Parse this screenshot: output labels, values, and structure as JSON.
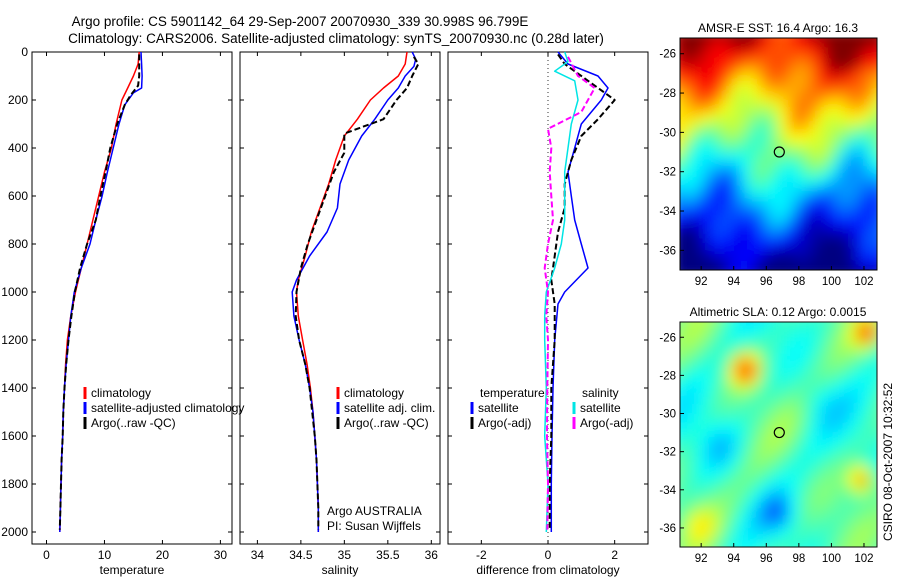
{
  "header": {
    "title_line1": "Argo profile: CS 5901142_64 29-Sep-2007 20070930_339 30.998S 96.799E",
    "title_line2": "Climatology: CARS2006. Satellite-adjusted climatology: synTS_20070930.nc (0.28d later)"
  },
  "side_text": "CSIRO 08-Oct-2007 10:32:52",
  "chart_data": [
    {
      "type": "line",
      "panel": "temperature",
      "xlabel": "temperature",
      "ylabel": "",
      "xlim": [
        -2.5,
        32
      ],
      "ylim": [
        2050,
        0
      ],
      "xticks": [
        0,
        10,
        20,
        30
      ],
      "yticks": [
        0,
        200,
        400,
        600,
        800,
        1000,
        1200,
        1400,
        1600,
        1800,
        2000
      ],
      "legend": {
        "placement": "bottom-right",
        "entries": [
          "climatology",
          "satellite-adjusted climatology",
          "Argo(..raw -QC)"
        ]
      },
      "series": [
        {
          "name": "climatology",
          "color": "#ff0000",
          "dash": "solid",
          "points": [
            [
              16.0,
              0
            ],
            [
              15.8,
              50
            ],
            [
              15.0,
              100
            ],
            [
              14.0,
              150
            ],
            [
              13.0,
              200
            ],
            [
              12.0,
              300
            ],
            [
              11.2,
              400
            ],
            [
              10.0,
              500
            ],
            [
              9.0,
              600
            ],
            [
              8.0,
              700
            ],
            [
              7.0,
              800
            ],
            [
              6.0,
              900
            ],
            [
              5.0,
              1000
            ],
            [
              4.2,
              1100
            ],
            [
              3.6,
              1200
            ],
            [
              3.3,
              1300
            ],
            [
              3.1,
              1400
            ],
            [
              2.9,
              1500
            ],
            [
              2.8,
              1600
            ],
            [
              2.6,
              1700
            ],
            [
              2.5,
              1800
            ],
            [
              2.4,
              1900
            ],
            [
              2.3,
              2000
            ]
          ]
        },
        {
          "name": "satellite-adjusted climatology",
          "color": "#0000ff",
          "dash": "solid",
          "points": [
            [
              16.3,
              0
            ],
            [
              16.4,
              50
            ],
            [
              16.5,
              100
            ],
            [
              16.4,
              150
            ],
            [
              15.0,
              170
            ],
            [
              13.5,
              220
            ],
            [
              12.5,
              300
            ],
            [
              11.5,
              400
            ],
            [
              10.5,
              500
            ],
            [
              9.6,
              600
            ],
            [
              8.5,
              700
            ],
            [
              7.5,
              800
            ],
            [
              6.0,
              900
            ],
            [
              4.8,
              1000
            ],
            [
              4.2,
              1100
            ],
            [
              3.8,
              1200
            ],
            [
              3.4,
              1300
            ],
            [
              3.1,
              1400
            ],
            [
              2.9,
              1500
            ],
            [
              2.8,
              1600
            ],
            [
              2.6,
              1700
            ],
            [
              2.5,
              1800
            ],
            [
              2.4,
              1900
            ],
            [
              2.3,
              2000
            ]
          ]
        },
        {
          "name": "Argo(..raw -QC)",
          "color": "#000000",
          "dash": "dashed",
          "points": [
            [
              16.0,
              10
            ],
            [
              16.0,
              50
            ],
            [
              16.0,
              100
            ],
            [
              15.8,
              140
            ],
            [
              14.5,
              180
            ],
            [
              13.5,
              220
            ],
            [
              12.2,
              300
            ],
            [
              11.0,
              400
            ],
            [
              10.2,
              500
            ],
            [
              9.3,
              600
            ],
            [
              8.5,
              700
            ],
            [
              7.0,
              800
            ],
            [
              5.8,
              900
            ],
            [
              4.9,
              1000
            ],
            [
              4.3,
              1100
            ],
            [
              3.8,
              1200
            ],
            [
              3.4,
              1300
            ],
            [
              3.1,
              1400
            ],
            [
              2.9,
              1500
            ],
            [
              2.8,
              1600
            ],
            [
              2.6,
              1700
            ],
            [
              2.5,
              1800
            ],
            [
              2.4,
              1900
            ],
            [
              2.3,
              1990
            ]
          ]
        }
      ]
    },
    {
      "type": "line",
      "panel": "salinity",
      "xlabel": "salinity",
      "ylabel": "",
      "xlim": [
        33.8,
        36.1
      ],
      "ylim": [
        2050,
        0
      ],
      "xticks": [
        34,
        34.5,
        35,
        35.5,
        36
      ],
      "yticks": [
        0,
        200,
        400,
        600,
        800,
        1000,
        1200,
        1400,
        1600,
        1800,
        2000
      ],
      "legend": {
        "placement": "bottom-right",
        "entries": [
          "climatology",
          "satellite adj. clim.",
          "Argo(..raw -QC)"
        ]
      },
      "annotations": [
        "Argo AUSTRALIA",
        "PI: Susan Wijffels"
      ],
      "series": [
        {
          "name": "climatology",
          "color": "#ff0000",
          "dash": "solid",
          "points": [
            [
              35.72,
              0
            ],
            [
              35.7,
              50
            ],
            [
              35.62,
              100
            ],
            [
              35.45,
              150
            ],
            [
              35.3,
              200
            ],
            [
              35.15,
              280
            ],
            [
              35.0,
              350
            ],
            [
              34.9,
              450
            ],
            [
              34.82,
              550
            ],
            [
              34.72,
              650
            ],
            [
              34.62,
              750
            ],
            [
              34.55,
              850
            ],
            [
              34.47,
              950
            ],
            [
              34.45,
              1000
            ],
            [
              34.47,
              1100
            ],
            [
              34.52,
              1200
            ],
            [
              34.57,
              1300
            ],
            [
              34.61,
              1400
            ],
            [
              34.64,
              1500
            ],
            [
              34.66,
              1600
            ],
            [
              34.68,
              1700
            ],
            [
              34.69,
              1800
            ],
            [
              34.7,
              1900
            ],
            [
              34.7,
              2000
            ]
          ]
        },
        {
          "name": "satellite adj. clim.",
          "color": "#0000ff",
          "dash": "solid",
          "points": [
            [
              35.78,
              0
            ],
            [
              35.82,
              30
            ],
            [
              35.8,
              60
            ],
            [
              35.7,
              100
            ],
            [
              35.62,
              150
            ],
            [
              35.5,
              200
            ],
            [
              35.35,
              280
            ],
            [
              35.2,
              350
            ],
            [
              35.05,
              450
            ],
            [
              34.95,
              550
            ],
            [
              34.92,
              650
            ],
            [
              34.8,
              750
            ],
            [
              34.6,
              850
            ],
            [
              34.45,
              950
            ],
            [
              34.4,
              1000
            ],
            [
              34.42,
              1100
            ],
            [
              34.48,
              1200
            ],
            [
              34.55,
              1300
            ],
            [
              34.6,
              1400
            ],
            [
              34.64,
              1500
            ],
            [
              34.66,
              1600
            ],
            [
              34.68,
              1700
            ],
            [
              34.69,
              1800
            ],
            [
              34.7,
              1900
            ],
            [
              34.7,
              2000
            ]
          ]
        },
        {
          "name": "Argo(..raw -QC)",
          "color": "#000000",
          "dash": "dashed",
          "points": [
            [
              35.8,
              20
            ],
            [
              35.85,
              50
            ],
            [
              35.78,
              100
            ],
            [
              35.72,
              150
            ],
            [
              35.6,
              200
            ],
            [
              35.45,
              280
            ],
            [
              35.0,
              340
            ],
            [
              35.0,
              420
            ],
            [
              34.88,
              500
            ],
            [
              34.78,
              600
            ],
            [
              34.68,
              700
            ],
            [
              34.58,
              800
            ],
            [
              34.5,
              900
            ],
            [
              34.45,
              1000
            ],
            [
              34.44,
              1100
            ],
            [
              34.48,
              1200
            ],
            [
              34.55,
              1300
            ],
            [
              34.6,
              1400
            ],
            [
              34.63,
              1500
            ],
            [
              34.66,
              1600
            ],
            [
              34.68,
              1700
            ],
            [
              34.69,
              1800
            ],
            [
              34.7,
              1900
            ],
            [
              34.7,
              1990
            ]
          ]
        }
      ]
    },
    {
      "type": "line",
      "panel": "difference",
      "xlabel": "difference from climatology",
      "ylabel": "",
      "xlim": [
        -3,
        3
      ],
      "ylim": [
        2050,
        0
      ],
      "xticks": [
        -2,
        0,
        2
      ],
      "yticks": [
        0,
        200,
        400,
        600,
        800,
        1000,
        1200,
        1400,
        1600,
        1800,
        2000
      ],
      "legend": {
        "placement": "bottom",
        "headers": [
          "temperature",
          "salinity"
        ],
        "entries": [
          "satellite",
          "Argo(-adj)",
          "satellite",
          "Argo(-adj)"
        ]
      },
      "series": [
        {
          "name": "satellite",
          "group": "temperature",
          "color": "#0000ff",
          "dash": "solid",
          "points": [
            [
              0.3,
              0
            ],
            [
              0.6,
              50
            ],
            [
              1.5,
              100
            ],
            [
              1.8,
              150
            ],
            [
              1.6,
              200
            ],
            [
              1.0,
              300
            ],
            [
              0.8,
              400
            ],
            [
              0.6,
              500
            ],
            [
              0.7,
              600
            ],
            [
              0.8,
              700
            ],
            [
              1.0,
              800
            ],
            [
              1.2,
              900
            ],
            [
              0.5,
              1000
            ],
            [
              0.3,
              1050
            ],
            [
              0.2,
              1200
            ],
            [
              0.15,
              1400
            ],
            [
              0.12,
              1600
            ],
            [
              0.1,
              1800
            ],
            [
              0.1,
              2000
            ]
          ]
        },
        {
          "name": "Argo(-adj)",
          "group": "temperature",
          "color": "#000000",
          "dash": "dashed",
          "points": [
            [
              0.3,
              10
            ],
            [
              0.5,
              50
            ],
            [
              1.2,
              120
            ],
            [
              2.0,
              200
            ],
            [
              1.5,
              280
            ],
            [
              1.0,
              350
            ],
            [
              0.7,
              450
            ],
            [
              0.5,
              550
            ],
            [
              0.5,
              650
            ],
            [
              0.3,
              750
            ],
            [
              0.2,
              850
            ],
            [
              0.1,
              950
            ],
            [
              0.2,
              1050
            ],
            [
              0.2,
              1200
            ],
            [
              0.1,
              1400
            ],
            [
              0.1,
              1600
            ],
            [
              0.05,
              1800
            ],
            [
              0.05,
              1990
            ]
          ]
        },
        {
          "name": "satellite",
          "group": "salinity",
          "color": "#00e5e5",
          "dash": "solid",
          "points": [
            [
              0.5,
              0
            ],
            [
              0.6,
              40
            ],
            [
              0.2,
              80
            ],
            [
              0.8,
              120
            ],
            [
              0.9,
              200
            ],
            [
              0.7,
              300
            ],
            [
              0.6,
              400
            ],
            [
              0.5,
              500
            ],
            [
              0.5,
              600
            ],
            [
              0.5,
              700
            ],
            [
              0.4,
              800
            ],
            [
              0.2,
              900
            ],
            [
              -0.05,
              1000
            ],
            [
              -0.1,
              1100
            ],
            [
              -0.1,
              1200
            ],
            [
              -0.05,
              1400
            ],
            [
              -0.1,
              1600
            ],
            [
              0.0,
              1800
            ],
            [
              -0.05,
              2000
            ]
          ]
        },
        {
          "name": "Argo(-adj)",
          "group": "salinity",
          "color": "#ff00ff",
          "dash": "dashed",
          "points": [
            [
              0.6,
              20
            ],
            [
              0.9,
              100
            ],
            [
              1.4,
              150
            ],
            [
              1.0,
              250
            ],
            [
              0.0,
              320
            ],
            [
              0.1,
              400
            ],
            [
              0.05,
              500
            ],
            [
              0.1,
              600
            ],
            [
              0.15,
              700
            ],
            [
              0.0,
              800
            ],
            [
              -0.1,
              900
            ],
            [
              0.0,
              1000
            ],
            [
              -0.05,
              1100
            ],
            [
              0.0,
              1200
            ],
            [
              -0.02,
              1400
            ],
            [
              -0.03,
              1600
            ],
            [
              0.0,
              1800
            ],
            [
              -0.02,
              1990
            ]
          ]
        }
      ]
    },
    {
      "type": "heatmap",
      "panel": "sst_map",
      "title": "AMSR-E SST: 16.4 Argo: 16.3",
      "xlim": [
        90.7,
        102.8
      ],
      "ylim": [
        -37,
        -25.2
      ],
      "xticks": [
        92,
        94,
        96,
        98,
        100,
        102
      ],
      "yticks": [
        -26,
        -28,
        -30,
        -32,
        -34,
        -36
      ],
      "colormap": "jet",
      "marker": {
        "lon": 96.799,
        "lat": -30.998
      }
    },
    {
      "type": "heatmap",
      "panel": "sla_map",
      "title": "Altimetric SLA: 0.12 Argo: 0.0015",
      "xlim": [
        90.7,
        102.8
      ],
      "ylim": [
        -37,
        -25.2
      ],
      "xticks": [
        92,
        94,
        96,
        98,
        100,
        102
      ],
      "yticks": [
        -26,
        -28,
        -30,
        -32,
        -34,
        -36
      ],
      "colormap": "jet",
      "marker": {
        "lon": 96.799,
        "lat": -30.998
      }
    }
  ]
}
